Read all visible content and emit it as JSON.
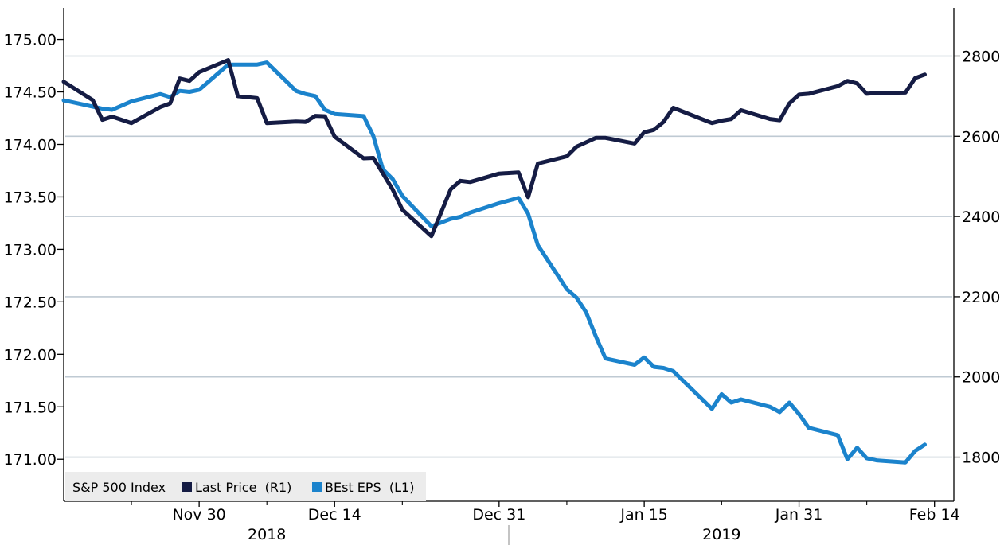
{
  "chart_data": {
    "type": "line",
    "legend": {
      "title": "S&P 500 Index",
      "placement": "bottom-left",
      "entries": [
        {
          "label": "Last Price  (R1)",
          "color": "#151c44"
        },
        {
          "label": "BEst EPS  (L1)",
          "color": "#1b83cc"
        }
      ]
    },
    "grid": "horizontal",
    "left_axis": {
      "ylim": [
        170.6,
        175.3
      ],
      "ticks": [
        "175.00",
        "174.50",
        "174.00",
        "173.50",
        "173.00",
        "172.50",
        "172.00",
        "171.50",
        "171.00"
      ],
      "tick_values": [
        175.0,
        174.5,
        174.0,
        173.5,
        173.0,
        172.5,
        172.0,
        171.5,
        171.0
      ]
    },
    "right_axis": {
      "ylim": [
        1690,
        2920
      ],
      "ticks": [
        "2800",
        "2600",
        "2400",
        "2200",
        "2000",
        "1800"
      ],
      "tick_values": [
        2800,
        2600,
        2400,
        2200,
        2000,
        1800
      ]
    },
    "x_axis": {
      "range": [
        "2018-11-16",
        "2019-02-16"
      ],
      "date_labels": [
        {
          "date": "2018-11-30",
          "label": "Nov 30"
        },
        {
          "date": "2018-12-14",
          "label": "Dec 14"
        },
        {
          "date": "2018-12-31",
          "label": "Dec 31"
        },
        {
          "date": "2019-01-15",
          "label": "Jan 15"
        },
        {
          "date": "2019-01-31",
          "label": "Jan 31"
        },
        {
          "date": "2019-02-14",
          "label": "Feb 14"
        }
      ],
      "minor_tick_dates": [
        "2018-11-23",
        "2018-12-07",
        "2018-12-21",
        "2019-01-07",
        "2019-01-23",
        "2019-02-07"
      ],
      "year_labels": [
        {
          "date": "2018-12-07",
          "label": "2018"
        },
        {
          "date": "2019-01-23",
          "label": "2019"
        }
      ],
      "year_divider_date": "2019-01-01"
    },
    "series": [
      {
        "name": "Last Price  (R1)",
        "axis": "right",
        "color": "#151c44",
        "points": [
          [
            "2018-11-16",
            2736
          ],
          [
            "2018-11-19",
            2690
          ],
          [
            "2018-11-20",
            2641
          ],
          [
            "2018-11-21",
            2649
          ],
          [
            "2018-11-23",
            2633
          ],
          [
            "2018-11-26",
            2673
          ],
          [
            "2018-11-27",
            2682
          ],
          [
            "2018-11-28",
            2744
          ],
          [
            "2018-11-29",
            2738
          ],
          [
            "2018-11-30",
            2760
          ],
          [
            "2018-12-03",
            2790
          ],
          [
            "2018-12-04",
            2700
          ],
          [
            "2018-12-06",
            2695
          ],
          [
            "2018-12-07",
            2633
          ],
          [
            "2018-12-10",
            2637
          ],
          [
            "2018-12-11",
            2636
          ],
          [
            "2018-12-12",
            2651
          ],
          [
            "2018-12-13",
            2650
          ],
          [
            "2018-12-14",
            2599
          ],
          [
            "2018-12-17",
            2545
          ],
          [
            "2018-12-18",
            2546
          ],
          [
            "2018-12-19",
            2507
          ],
          [
            "2018-12-20",
            2467
          ],
          [
            "2018-12-21",
            2417
          ],
          [
            "2018-12-24",
            2351
          ],
          [
            "2018-12-26",
            2468
          ],
          [
            "2018-12-27",
            2489
          ],
          [
            "2018-12-28",
            2486
          ],
          [
            "2018-12-31",
            2507
          ],
          [
            "2019-01-02",
            2510
          ],
          [
            "2019-01-03",
            2448
          ],
          [
            "2019-01-04",
            2532
          ],
          [
            "2019-01-07",
            2550
          ],
          [
            "2019-01-08",
            2574
          ],
          [
            "2019-01-09",
            2585
          ],
          [
            "2019-01-10",
            2596
          ],
          [
            "2019-01-11",
            2596
          ],
          [
            "2019-01-14",
            2582
          ],
          [
            "2019-01-15",
            2610
          ],
          [
            "2019-01-16",
            2616
          ],
          [
            "2019-01-17",
            2636
          ],
          [
            "2019-01-18",
            2671
          ],
          [
            "2019-01-22",
            2633
          ],
          [
            "2019-01-23",
            2639
          ],
          [
            "2019-01-24",
            2643
          ],
          [
            "2019-01-25",
            2665
          ],
          [
            "2019-01-28",
            2643
          ],
          [
            "2019-01-29",
            2640
          ],
          [
            "2019-01-30",
            2682
          ],
          [
            "2019-01-31",
            2704
          ],
          [
            "2019-02-01",
            2706
          ],
          [
            "2019-02-04",
            2725
          ],
          [
            "2019-02-05",
            2738
          ],
          [
            "2019-02-06",
            2732
          ],
          [
            "2019-02-07",
            2706
          ],
          [
            "2019-02-08",
            2708
          ],
          [
            "2019-02-11",
            2709
          ],
          [
            "2019-02-12",
            2745
          ],
          [
            "2019-02-13",
            2754
          ]
        ]
      },
      {
        "name": "BEst EPS  (L1)",
        "axis": "left",
        "color": "#1b83cc",
        "points": [
          [
            "2018-11-16",
            174.42
          ],
          [
            "2018-11-19",
            174.36
          ],
          [
            "2018-11-20",
            174.34
          ],
          [
            "2018-11-21",
            174.33
          ],
          [
            "2018-11-23",
            174.41
          ],
          [
            "2018-11-26",
            174.48
          ],
          [
            "2018-11-27",
            174.45
          ],
          [
            "2018-11-28",
            174.51
          ],
          [
            "2018-11-29",
            174.5
          ],
          [
            "2018-11-30",
            174.52
          ],
          [
            "2018-12-03",
            174.76
          ],
          [
            "2018-12-04",
            174.76
          ],
          [
            "2018-12-06",
            174.76
          ],
          [
            "2018-12-07",
            174.78
          ],
          [
            "2018-12-10",
            174.51
          ],
          [
            "2018-12-11",
            174.48
          ],
          [
            "2018-12-12",
            174.46
          ],
          [
            "2018-12-13",
            174.33
          ],
          [
            "2018-12-14",
            174.29
          ],
          [
            "2018-12-17",
            174.27
          ],
          [
            "2018-12-18",
            174.08
          ],
          [
            "2018-12-19",
            173.76
          ],
          [
            "2018-12-20",
            173.67
          ],
          [
            "2018-12-21",
            173.51
          ],
          [
            "2018-12-24",
            173.22
          ],
          [
            "2018-12-26",
            173.29
          ],
          [
            "2018-12-27",
            173.31
          ],
          [
            "2018-12-28",
            173.35
          ],
          [
            "2018-12-31",
            173.44
          ],
          [
            "2019-01-02",
            173.49
          ],
          [
            "2019-01-03",
            173.34
          ],
          [
            "2019-01-04",
            173.04
          ],
          [
            "2019-01-07",
            172.62
          ],
          [
            "2019-01-08",
            172.54
          ],
          [
            "2019-01-09",
            172.4
          ],
          [
            "2019-01-10",
            172.17
          ],
          [
            "2019-01-11",
            171.96
          ],
          [
            "2019-01-14",
            171.9
          ],
          [
            "2019-01-15",
            171.97
          ],
          [
            "2019-01-16",
            171.88
          ],
          [
            "2019-01-17",
            171.87
          ],
          [
            "2019-01-18",
            171.84
          ],
          [
            "2019-01-22",
            171.48
          ],
          [
            "2019-01-23",
            171.62
          ],
          [
            "2019-01-24",
            171.54
          ],
          [
            "2019-01-25",
            171.57
          ],
          [
            "2019-01-28",
            171.5
          ],
          [
            "2019-01-29",
            171.45
          ],
          [
            "2019-01-30",
            171.54
          ],
          [
            "2019-01-31",
            171.43
          ],
          [
            "2019-02-01",
            171.3
          ],
          [
            "2019-02-04",
            171.23
          ],
          [
            "2019-02-05",
            171.0
          ],
          [
            "2019-02-06",
            171.11
          ],
          [
            "2019-02-07",
            171.01
          ],
          [
            "2019-02-08",
            170.99
          ],
          [
            "2019-02-11",
            170.97
          ],
          [
            "2019-02-12",
            171.08
          ],
          [
            "2019-02-13",
            171.14
          ]
        ]
      }
    ]
  }
}
